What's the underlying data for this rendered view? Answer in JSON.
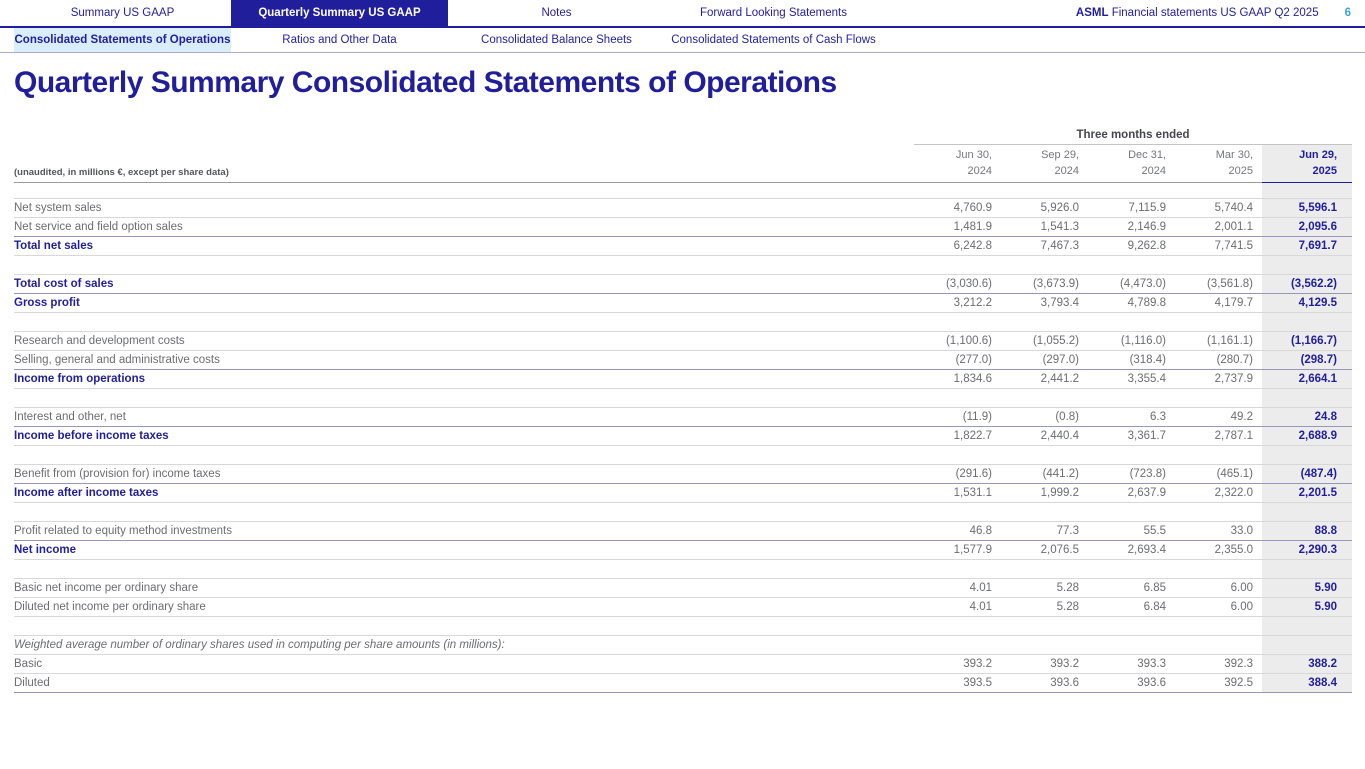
{
  "tabs": [
    {
      "label": "Summary US GAAP",
      "active": false
    },
    {
      "label": "Quarterly Summary US GAAP",
      "active": true
    },
    {
      "label": "Notes",
      "active": false
    },
    {
      "label": "Forward Looking Statements",
      "active": false
    }
  ],
  "doc_header": {
    "brand": "ASML",
    "text": " Financial statements US GAAP Q2 2025",
    "page": "6"
  },
  "subtabs": [
    {
      "label": "Consolidated Statements of Operations",
      "active": true
    },
    {
      "label": "Ratios and Other Data",
      "active": false
    },
    {
      "label": "Consolidated Balance Sheets",
      "active": false
    },
    {
      "label": "Consolidated Statements of Cash Flows",
      "active": false
    }
  ],
  "page_title": "Quarterly Summary Consolidated Statements of Operations",
  "table": {
    "period_header": "Three months ended",
    "unaudited_note": "(unaudited, in millions €, except per share data)",
    "columns": [
      {
        "line1": "Jun 30,",
        "line2": "2024",
        "highlight": false
      },
      {
        "line1": "Sep 29,",
        "line2": "2024",
        "highlight": false
      },
      {
        "line1": "Dec 31,",
        "line2": "2024",
        "highlight": false
      },
      {
        "line1": "Mar 30,",
        "line2": "2025",
        "highlight": false
      },
      {
        "line1": "Jun 29,",
        "line2": "2025",
        "highlight": true
      }
    ],
    "rows": [
      {
        "label": "Net system sales",
        "style": "normal",
        "values": [
          "4,760.9",
          "5,926.0",
          "7,115.9",
          "5,740.4",
          "5,596.1"
        ]
      },
      {
        "label": "Net service and field option sales",
        "style": "normal",
        "sum_line_below": true,
        "values": [
          "1,481.9",
          "1,541.3",
          "2,146.9",
          "2,001.1",
          "2,095.6"
        ]
      },
      {
        "label": "Total net sales",
        "style": "bold",
        "values": [
          "6,242.8",
          "7,467.3",
          "9,262.8",
          "7,741.5",
          "7,691.7"
        ]
      },
      {
        "label": "",
        "style": "spacer",
        "values": [
          "",
          "",
          "",
          "",
          ""
        ]
      },
      {
        "label": "Total cost of sales",
        "style": "bold",
        "sum_line_below": true,
        "values": [
          "(3,030.6)",
          "(3,673.9)",
          "(4,473.0)",
          "(3,561.8)",
          "(3,562.2)"
        ]
      },
      {
        "label": "Gross profit",
        "style": "bold",
        "values": [
          "3,212.2",
          "3,793.4",
          "4,789.8",
          "4,179.7",
          "4,129.5"
        ]
      },
      {
        "label": "",
        "style": "spacer",
        "values": [
          "",
          "",
          "",
          "",
          ""
        ]
      },
      {
        "label": "Research and development costs",
        "style": "normal",
        "values": [
          "(1,100.6)",
          "(1,055.2)",
          "(1,116.0)",
          "(1,161.1)",
          "(1,166.7)"
        ]
      },
      {
        "label": "Selling, general and administrative costs",
        "style": "normal",
        "sum_line_below": true,
        "values": [
          "(277.0)",
          "(297.0)",
          "(318.4)",
          "(280.7)",
          "(298.7)"
        ]
      },
      {
        "label": "Income from operations",
        "style": "bold",
        "values": [
          "1,834.6",
          "2,441.2",
          "3,355.4",
          "2,737.9",
          "2,664.1"
        ]
      },
      {
        "label": "",
        "style": "spacer",
        "values": [
          "",
          "",
          "",
          "",
          ""
        ]
      },
      {
        "label": "Interest and other, net",
        "style": "normal",
        "sum_line_below": true,
        "values": [
          "(11.9)",
          "(0.8)",
          "6.3",
          "49.2",
          "24.8"
        ]
      },
      {
        "label": "Income before income taxes",
        "style": "bold",
        "values": [
          "1,822.7",
          "2,440.4",
          "3,361.7",
          "2,787.1",
          "2,688.9"
        ]
      },
      {
        "label": "",
        "style": "spacer",
        "values": [
          "",
          "",
          "",
          "",
          ""
        ]
      },
      {
        "label": "Benefit from (provision for) income taxes",
        "style": "normal",
        "sum_line_below": true,
        "values": [
          "(291.6)",
          "(441.2)",
          "(723.8)",
          "(465.1)",
          "(487.4)"
        ]
      },
      {
        "label": "Income after income taxes",
        "style": "bold",
        "values": [
          "1,531.1",
          "1,999.2",
          "2,637.9",
          "2,322.0",
          "2,201.5"
        ]
      },
      {
        "label": "",
        "style": "spacer",
        "values": [
          "",
          "",
          "",
          "",
          ""
        ]
      },
      {
        "label": "Profit related to equity method investments",
        "style": "normal",
        "sum_line_below": true,
        "values": [
          "46.8",
          "77.3",
          "55.5",
          "33.0",
          "88.8"
        ]
      },
      {
        "label": "Net income",
        "style": "bold",
        "values": [
          "1,577.9",
          "2,076.5",
          "2,693.4",
          "2,355.0",
          "2,290.3"
        ]
      },
      {
        "label": "",
        "style": "spacer",
        "values": [
          "",
          "",
          "",
          "",
          ""
        ]
      },
      {
        "label": "Basic net income per ordinary share",
        "style": "normal",
        "values": [
          "4.01",
          "5.28",
          "6.85",
          "6.00",
          "5.90"
        ]
      },
      {
        "label": "Diluted net income per ordinary share",
        "style": "normal",
        "values": [
          "4.01",
          "5.28",
          "6.84",
          "6.00",
          "5.90"
        ]
      },
      {
        "label": "",
        "style": "spacer",
        "values": [
          "",
          "",
          "",
          "",
          ""
        ]
      },
      {
        "label": "Weighted average number of ordinary shares used in computing per share amounts (in millions):",
        "style": "italic",
        "values": [
          "",
          "",
          "",
          "",
          ""
        ]
      },
      {
        "label": "Basic",
        "style": "normal",
        "values": [
          "393.2",
          "393.2",
          "393.3",
          "392.3",
          "388.2"
        ]
      },
      {
        "label": "Diluted",
        "style": "normal",
        "sum_line_below": true,
        "values": [
          "393.5",
          "393.6",
          "393.6",
          "392.5",
          "388.4"
        ]
      }
    ]
  }
}
